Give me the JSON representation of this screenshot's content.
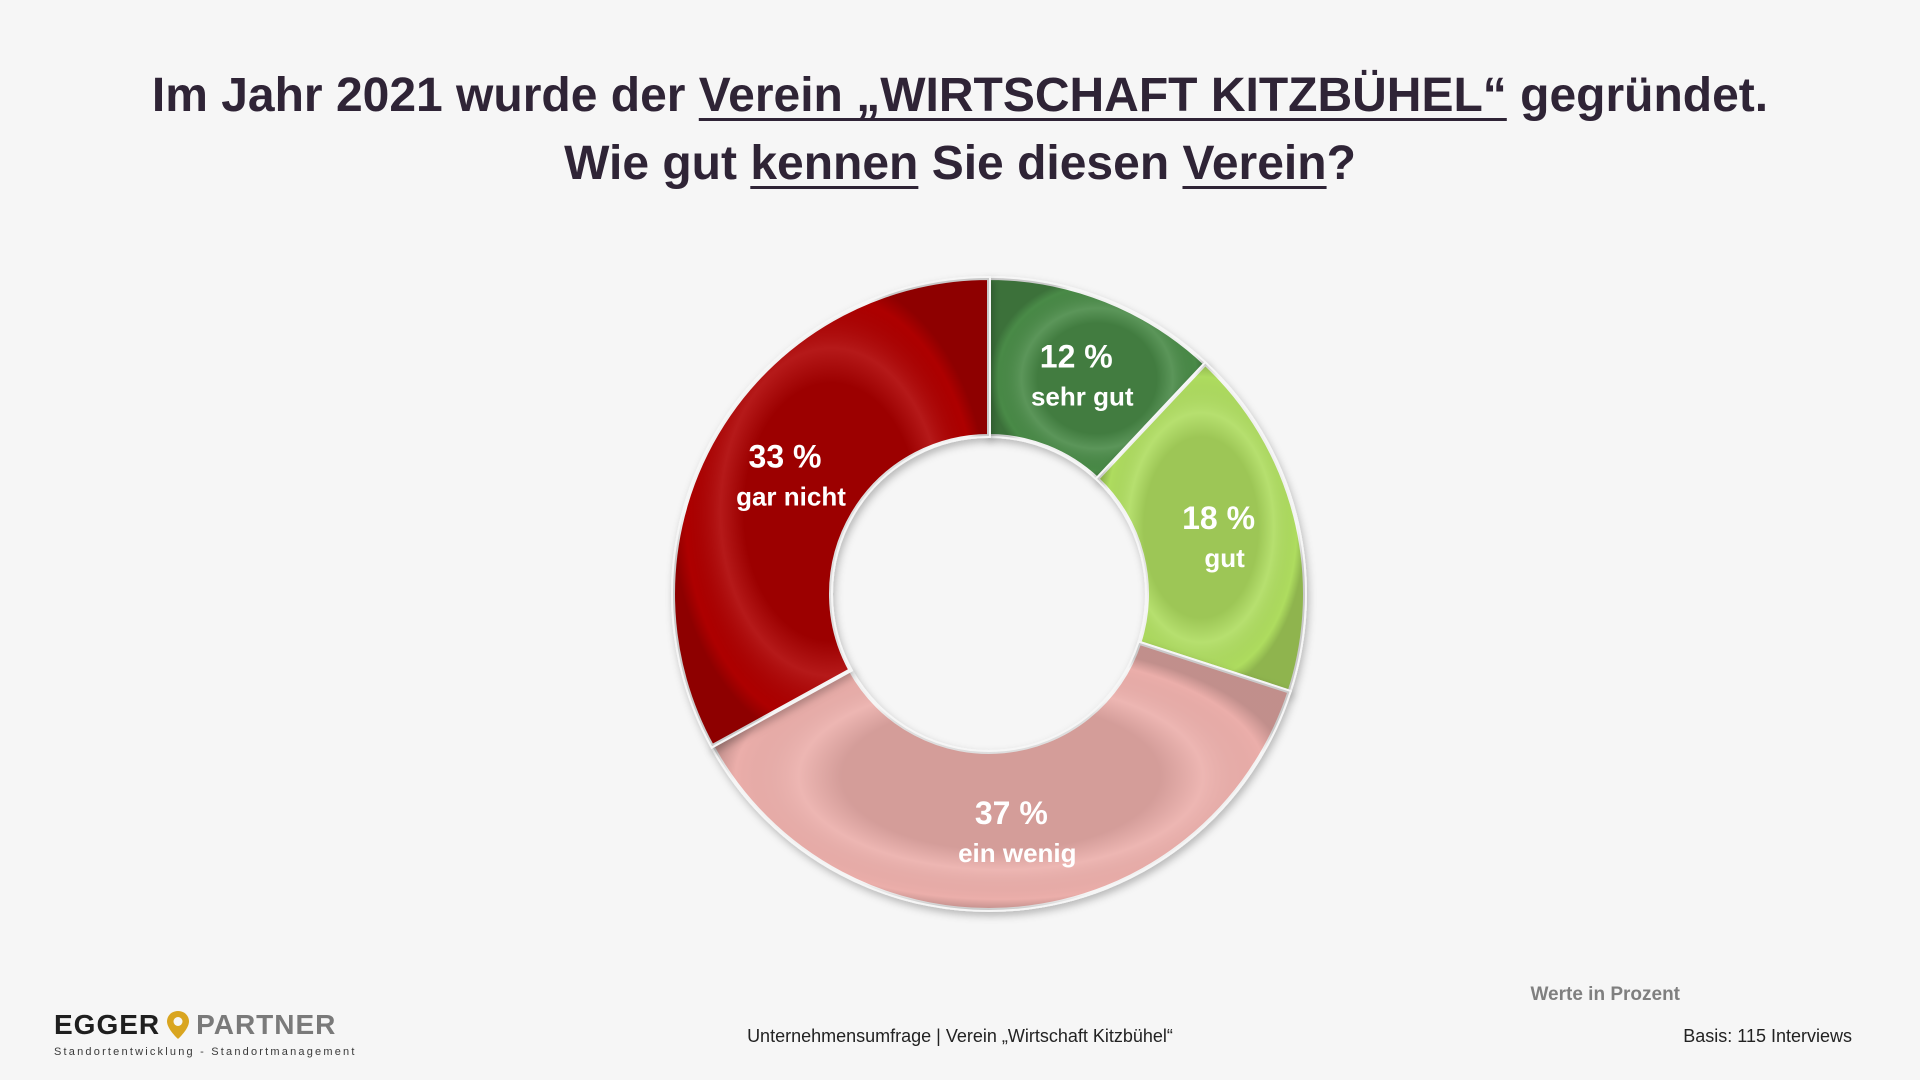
{
  "title": {
    "line1": [
      {
        "text": "Im Jahr 2021 wurde der ",
        "underline": false
      },
      {
        "text": "Verein „WIRTSCHAFT KITZBÜHEL“",
        "underline": true
      },
      {
        "text": " gegründet.",
        "underline": false
      }
    ],
    "line2": [
      {
        "text": "Wie gut ",
        "underline": false
      },
      {
        "text": "kennen",
        "underline": true
      },
      {
        "text": " Sie diesen ",
        "underline": false
      },
      {
        "text": "Verein",
        "underline": true
      },
      {
        "text": "?",
        "underline": false
      }
    ]
  },
  "chart_data": {
    "type": "pie",
    "variant": "donut",
    "unit": "%",
    "start": "12 o'clock",
    "direction": "clockwise",
    "slices": [
      {
        "label": "sehr gut",
        "value": 12,
        "display": "12 %",
        "color": "#4a8a47"
      },
      {
        "label": "gut",
        "value": 18,
        "display": "18 %",
        "color": "#aedc5f"
      },
      {
        "label": "ein wenig",
        "value": 37,
        "display": "37 %",
        "color": "#ebaeaa"
      },
      {
        "label": "gar nicht",
        "value": 33,
        "display": "33 %",
        "color": "#ad0606"
      }
    ]
  },
  "footer": {
    "source": "Unternehmensumfrage | Verein „Wirtschaft Kitzbühel“",
    "units_note": "Werte in Prozent",
    "base": "Basis: 115 Interviews"
  },
  "logo": {
    "word1": "EGGER",
    "word2": "PARTNER",
    "tagline": "Standortentwicklung - Standortmanagement",
    "pin_color": "#d9a520",
    "icon": "location-pin-icon"
  }
}
